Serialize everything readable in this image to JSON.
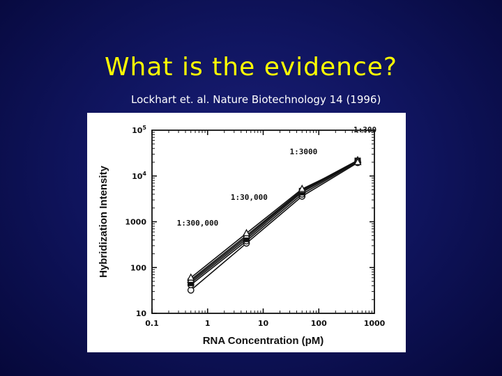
{
  "slide": {
    "title": "What is the evidence?",
    "citation": "Lockhart et. al. Nature Biotechnology 14 (1996)"
  },
  "colors": {
    "background": "#101560",
    "title": "#ffff00",
    "citation": "#ffffff",
    "plot_ink": "#111111"
  },
  "chart_data": {
    "type": "line",
    "xlabel": "RNA Concentration (pM)",
    "ylabel": "Hybridization Intensity",
    "x_scale": "log",
    "y_scale": "log",
    "xlim": [
      0.1,
      1000
    ],
    "ylim": [
      10,
      100000
    ],
    "x_ticks": [
      {
        "value": 0.1,
        "label": "0.1"
      },
      {
        "value": 1,
        "label": "1"
      },
      {
        "value": 10,
        "label": "10"
      },
      {
        "value": 100,
        "label": "100"
      },
      {
        "value": 1000,
        "label": "1000"
      }
    ],
    "y_ticks": [
      {
        "value": 10,
        "base": "10",
        "exp": ""
      },
      {
        "value": 100,
        "base": "100",
        "exp": ""
      },
      {
        "value": 1000,
        "base": "1000",
        "exp": ""
      },
      {
        "value": 10000,
        "base": "10",
        "exp": "4"
      },
      {
        "value": 100000,
        "base": "10",
        "exp": "5"
      }
    ],
    "x": [
      0.5,
      5,
      50,
      500
    ],
    "series": [
      {
        "marker": "circle",
        "values": [
          32,
          340,
          3600,
          19500
        ]
      },
      {
        "marker": "circle",
        "values": [
          42,
          380,
          4000,
          20500
        ]
      },
      {
        "marker": "square",
        "values": [
          46,
          420,
          4400,
          21000
        ]
      },
      {
        "marker": "square",
        "values": [
          50,
          460,
          4700,
          21500
        ]
      },
      {
        "marker": "triangle",
        "values": [
          54,
          500,
          4900,
          22000
        ]
      },
      {
        "marker": "triangle",
        "values": [
          60,
          560,
          5200,
          20000
        ]
      }
    ],
    "annotations": [
      {
        "text": "1:300,000",
        "x": 0.28,
        "y": 820
      },
      {
        "text": "1:30,000",
        "x": 2.6,
        "y": 3000
      },
      {
        "text": "1:3000",
        "x": 30,
        "y": 30000
      },
      {
        "text": "1:300",
        "x": 420,
        "y": 90000
      }
    ],
    "grid": false,
    "legend": "none"
  }
}
